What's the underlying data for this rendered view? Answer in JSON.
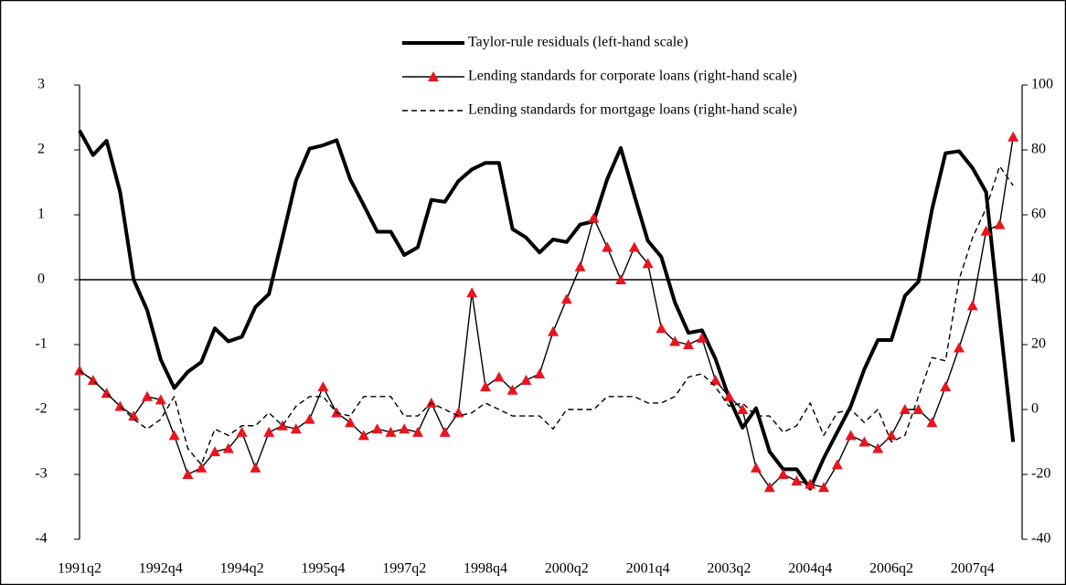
{
  "chart_data": {
    "type": "line",
    "categories": [
      "1991q2",
      null,
      null,
      null,
      null,
      null,
      "1992q4",
      null,
      null,
      null,
      null,
      null,
      "1994q2",
      null,
      null,
      null,
      null,
      null,
      "1995q4",
      null,
      null,
      null,
      null,
      null,
      "1997q2",
      null,
      null,
      null,
      null,
      null,
      "1998q4",
      null,
      null,
      null,
      null,
      null,
      "2000q2",
      null,
      null,
      null,
      null,
      null,
      "2001q4",
      null,
      null,
      null,
      null,
      null,
      "2003q2",
      null,
      null,
      null,
      null,
      null,
      "2004q4",
      null,
      null,
      null,
      null,
      null,
      "2006q2",
      null,
      null,
      null,
      null,
      null,
      "2007q4",
      null,
      null,
      null
    ],
    "ylim": [
      -4,
      3
    ],
    "yticks": [
      -4,
      -3,
      -2,
      -1,
      0,
      1,
      2,
      3
    ],
    "y2lim": [
      -40,
      100
    ],
    "y2ticks": [
      -40,
      -20,
      0,
      20,
      40,
      60,
      80,
      100
    ],
    "series": [
      {
        "name": "Taylor-rule residuals (left-hand scale)",
        "color": "#000000",
        "style": "bold",
        "values": [
          2.3,
          1.92,
          2.14,
          1.35,
          0.0,
          -0.47,
          -1.23,
          -1.67,
          -1.42,
          -1.27,
          -0.75,
          -0.95,
          -0.88,
          -0.42,
          -0.22,
          0.65,
          1.53,
          2.02,
          2.07,
          2.15,
          1.55,
          1.15,
          0.74,
          0.74,
          0.38,
          0.5,
          1.23,
          1.2,
          1.52,
          1.7,
          1.8,
          1.8,
          0.78,
          0.65,
          0.42,
          0.62,
          0.58,
          0.85,
          0.9,
          1.55,
          2.03,
          1.3,
          0.6,
          0.35,
          -0.35,
          -0.82,
          -0.78,
          -1.22,
          -1.82,
          -2.28,
          -1.98,
          -2.65,
          -2.92,
          -2.92,
          -3.22,
          -2.75,
          -2.35,
          -1.95,
          -1.38,
          -0.93,
          -0.93,
          -0.25,
          -0.03,
          1.08,
          1.95,
          1.98,
          1.72,
          1.35,
          -0.6,
          -2.5
        ]
      },
      {
        "name": "Lending standards for corporate loans (right-hand scale)",
        "color": "#000000",
        "marker_color": "#e8141e",
        "style": "markers",
        "axis": "y2",
        "values": [
          12,
          9,
          5,
          1,
          -2,
          4,
          3,
          -8,
          -20,
          -18,
          -13,
          -12,
          -7,
          -18,
          -7,
          -5,
          -6,
          -3,
          7,
          -1,
          -4,
          -8,
          -6,
          -7,
          -6,
          -7,
          2,
          -7,
          -1,
          36,
          7,
          10,
          6,
          9,
          11,
          24,
          34,
          44,
          59,
          50,
          40,
          50,
          45,
          25,
          21,
          20,
          22,
          9,
          4,
          0,
          -18,
          -24,
          -20,
          -22,
          -23,
          -24,
          -17,
          -8,
          -10,
          -12,
          -8,
          0,
          0,
          -4,
          7,
          19,
          32,
          55,
          57,
          84
        ]
      },
      {
        "name": "Lending standards for mortgage loans (right-hand scale)",
        "color": "#000000",
        "style": "dashed",
        "axis": "y2",
        "values": [
          12,
          9,
          5,
          1,
          -3,
          -6,
          -3,
          4,
          -12,
          -17,
          -6,
          -8,
          -5,
          -5,
          -1,
          -5,
          1,
          4,
          4,
          -1,
          -2,
          4,
          4,
          4,
          -2,
          -2,
          2,
          0,
          -2,
          -1,
          2,
          0,
          -2,
          -2,
          -2,
          -6,
          0,
          0,
          0,
          4,
          4,
          4,
          2,
          2,
          4,
          10,
          11,
          7,
          1,
          2,
          -2,
          -2,
          -7,
          -5,
          2,
          -8,
          -1,
          0,
          -4,
          0,
          -10,
          -8,
          4,
          16,
          15,
          40,
          53,
          62,
          75,
          69
        ]
      }
    ]
  }
}
